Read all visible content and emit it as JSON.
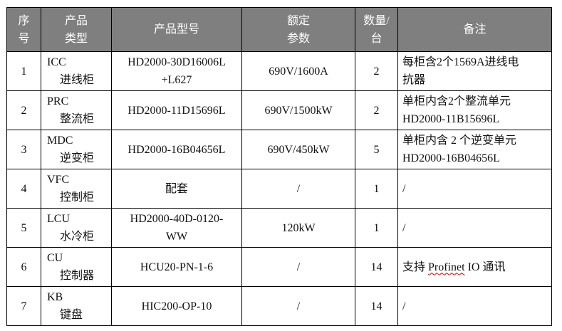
{
  "header": {
    "seq": [
      "序",
      "号"
    ],
    "type": [
      "产品",
      "类型"
    ],
    "model": "产品型号",
    "rating": [
      "额定",
      "参数"
    ],
    "qty": [
      "数量/",
      "台"
    ],
    "note": "备注"
  },
  "rows": [
    {
      "seq": "1",
      "code": "ICC",
      "name": "进线柜",
      "model": [
        "HD2000-30D16006L",
        "+L627"
      ],
      "rating": "690V/1600A",
      "qty": "2",
      "note": [
        "每柜含2个1569A进线电",
        "抗器"
      ]
    },
    {
      "seq": "2",
      "code": "PRC",
      "name": "整流柜",
      "model": [
        "HD2000-11D15696L"
      ],
      "rating": "690V/1500kW",
      "qty": "2",
      "note": [
        "单柜内含2个整流单元",
        "HD2000-11B15696L"
      ]
    },
    {
      "seq": "3",
      "code": "MDC",
      "name": "逆变柜",
      "model": [
        "HD2000-16B04656L"
      ],
      "rating": "690V/450kW",
      "qty": "5",
      "note": [
        "单柜内含 2 个逆变单元",
        "HD2000-16B04656L"
      ]
    },
    {
      "seq": "4",
      "code": "VFC",
      "name": "控制柜",
      "model": [
        "配套"
      ],
      "rating": "/",
      "qty": "1",
      "note": [
        "/"
      ]
    },
    {
      "seq": "5",
      "code": "LCU",
      "name": "水冷柜",
      "model": [
        "HD2000-40D-0120-",
        "WW"
      ],
      "rating": "120kW",
      "qty": "1",
      "note": [
        "/"
      ]
    },
    {
      "seq": "6",
      "code": "CU",
      "name": "控制器",
      "model": [
        "HCU20-PN-1-6"
      ],
      "rating": "/",
      "qty": "14",
      "note": [
        "支持 ",
        "Profinet",
        " IO 通讯"
      ]
    },
    {
      "seq": "7",
      "code": "KB",
      "name": "键盘",
      "model": [
        "HIC200-OP-10"
      ],
      "rating": "/",
      "qty": "14",
      "note": [
        "/"
      ]
    }
  ]
}
